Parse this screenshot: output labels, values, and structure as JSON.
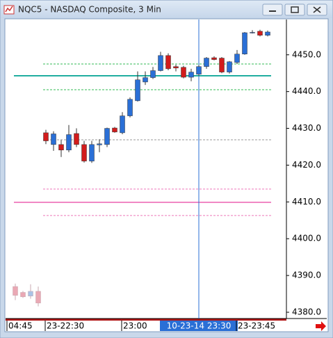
{
  "chart_data": {
    "type": "candlestick",
    "title": "NQC5 - NASDAQ Composite, 3 Min",
    "categories": [
      "04:45",
      null,
      null,
      null,
      null,
      "23-22:30",
      null,
      null,
      null,
      null,
      null,
      null,
      null,
      null,
      null,
      "23:00",
      null,
      null,
      null,
      null,
      null,
      null,
      null,
      null,
      null,
      "10-23-14 23:30",
      null,
      null,
      null,
      null,
      "23-23:45",
      null,
      null,
      null,
      null,
      null,
      null
    ],
    "crosshair": 25,
    "ylim": [
      4378.3,
      4459.6
    ],
    "yticks": [
      {
        "value": 4380,
        "label": "4380.0"
      },
      {
        "value": 4390,
        "label": "4390.0"
      },
      {
        "value": 4400,
        "label": "4400.0"
      },
      {
        "value": 4410,
        "label": "4410.0"
      },
      {
        "value": 4420,
        "label": "4420.0"
      },
      {
        "value": 4430,
        "label": "4430.0"
      },
      {
        "value": 4440,
        "label": "4440.0"
      },
      {
        "value": 4450,
        "label": "4450.0"
      }
    ],
    "levels": [
      {
        "value": 4447.5,
        "color": "#33bb55",
        "style": "dashed"
      },
      {
        "value": 4444.3,
        "color": "#12a89a",
        "style": "solid"
      },
      {
        "value": 4440.5,
        "color": "#33bb55",
        "style": "dashed"
      },
      {
        "value": 4426.9,
        "color": "#999999",
        "style": "dashed"
      },
      {
        "value": 4413.5,
        "color": "#ee77bb",
        "style": "dashed"
      },
      {
        "value": 4409.9,
        "color": "#ee77bb",
        "style": "solid"
      },
      {
        "value": 4406.3,
        "color": "#ee77bb",
        "style": "dashed"
      }
    ],
    "series": [
      {
        "color_up": "#a9c3e6",
        "color_down": "#eaa8b4",
        "wick_color": "#c8a8b0",
        "open": [
          null,
          4387.0,
          4385.4,
          4384.4,
          4385.7,
          null,
          null,
          null,
          null,
          null,
          null,
          null,
          null,
          null,
          null,
          null,
          null,
          null,
          null,
          null,
          null,
          null,
          null,
          null,
          null,
          null,
          null,
          null,
          null,
          null,
          null,
          null,
          null,
          null,
          null,
          null,
          null
        ],
        "high": [
          null,
          4387.8,
          4385.8,
          4387.6,
          4387.0,
          null,
          null,
          null,
          null,
          null,
          null,
          null,
          null,
          null,
          null,
          null,
          null,
          null,
          null,
          null,
          null,
          null,
          null,
          null,
          null,
          null,
          null,
          null,
          null,
          null,
          null,
          null,
          null,
          null,
          null,
          null,
          null
        ],
        "low": [
          null,
          4383.3,
          4383.9,
          4383.7,
          4381.6,
          null,
          null,
          null,
          null,
          null,
          null,
          null,
          null,
          null,
          null,
          null,
          null,
          null,
          null,
          null,
          null,
          null,
          null,
          null,
          null,
          null,
          null,
          null,
          null,
          null,
          null,
          null,
          null,
          null,
          null,
          null,
          null
        ],
        "close": [
          null,
          4384.6,
          4384.2,
          4385.7,
          4382.5,
          null,
          null,
          null,
          null,
          null,
          null,
          null,
          null,
          null,
          null,
          null,
          null,
          null,
          null,
          null,
          null,
          null,
          null,
          null,
          null,
          null,
          null,
          null,
          null,
          null,
          null,
          null,
          null,
          null,
          null,
          null,
          null
        ]
      },
      {
        "color_up": "#2a6fd6",
        "color_down": "#d21c1c",
        "wick_color": "#333333",
        "open": [
          null,
          null,
          null,
          null,
          null,
          4428.8,
          4425.6,
          4425.6,
          4424.1,
          4428.6,
          4425.6,
          4421.1,
          4425.5,
          4425.6,
          4430.1,
          4428.8,
          4433.4,
          4437.5,
          4442.6,
          4443.8,
          4445.7,
          4449.8,
          4446.8,
          4446.6,
          4443.9,
          4444.7,
          4446.8,
          4449.2,
          4449.1,
          4445.3,
          4447.9,
          4450.2,
          4456.0,
          4456.4,
          4455.3,
          null,
          null
        ],
        "high": [
          null,
          null,
          null,
          null,
          null,
          4429.6,
          4429.2,
          4426.8,
          4430.9,
          4430.0,
          4426.6,
          4426.6,
          4427.0,
          4430.2,
          4430.4,
          4434.4,
          4438.4,
          4445.5,
          4445.5,
          4446.7,
          4450.8,
          4450.4,
          4447.3,
          4447.0,
          4446.2,
          4447.2,
          4449.4,
          4449.6,
          4449.4,
          4448.3,
          4451.3,
          4456.2,
          4456.7,
          4456.8,
          4456.6,
          null,
          null
        ],
        "low": [
          null,
          null,
          null,
          null,
          null,
          4425.7,
          4423.9,
          4422.2,
          4423.5,
          4424.9,
          4420.7,
          4420.6,
          4423.5,
          4424.9,
          4428.8,
          4428.4,
          4433.0,
          4437.3,
          4441.8,
          4443.4,
          4445.5,
          4445.8,
          4445.5,
          4443.6,
          4442.8,
          4444.3,
          4446.2,
          4448.5,
          4445.0,
          4444.9,
          4447.5,
          4450.0,
          4455.8,
          4455.0,
          4455.0,
          null,
          null
        ],
        "close": [
          null,
          null,
          null,
          null,
          null,
          4426.6,
          4428.5,
          4424.1,
          4428.3,
          4425.6,
          4421.1,
          4425.6,
          4425.8,
          4430.0,
          4429.0,
          4433.4,
          4437.9,
          4443.2,
          4443.8,
          4445.7,
          4449.8,
          4446.2,
          4446.4,
          4443.9,
          4445.3,
          4446.8,
          4449.1,
          4448.7,
          4445.3,
          4448.1,
          4450.2,
          4456.0,
          4456.1,
          4455.3,
          4456.2,
          null,
          null
        ]
      }
    ]
  }
}
